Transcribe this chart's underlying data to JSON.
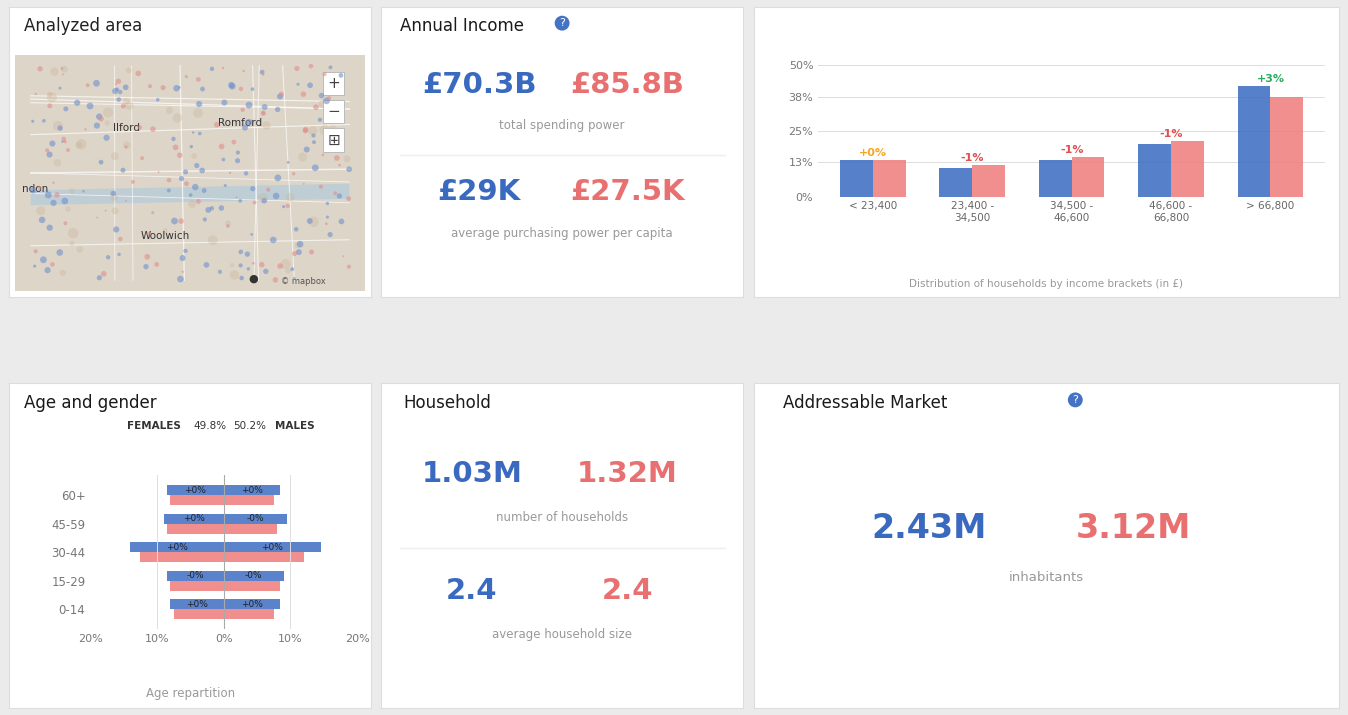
{
  "bg_color": "#ebebeb",
  "panel_color": "#ffffff",
  "map_title": "Analyzed area",
  "income_title": "Annual Income",
  "income_val1": "£70.3B",
  "income_val2": "£85.8B",
  "income_label1": "total spending power",
  "income_val3": "£29K",
  "income_val4": "£27.5K",
  "income_label2": "average purchasing power per capita",
  "blue_color": "#4472c4",
  "pink_color": "#f08080",
  "bar_categories": [
    "< 23,400",
    "23,400 -\n34,500",
    "34,500 -\n46,600",
    "46,600 -\n66,800",
    "> 66,800"
  ],
  "bar_blue": [
    14,
    11,
    14,
    20,
    42
  ],
  "bar_pink": [
    14,
    12,
    15,
    21,
    38
  ],
  "bar_annotations": [
    "+0%",
    "-1%",
    "-1%",
    "-1%",
    "+3%"
  ],
  "bar_ann_colors": [
    "#f5a623",
    "#e05050",
    "#e05050",
    "#e05050",
    "#27ae60"
  ],
  "bar_yticks": [
    0,
    13,
    25,
    38,
    50
  ],
  "bar_ytick_labels": [
    "0%",
    "13%",
    "25%",
    "38%",
    "50%"
  ],
  "bar_xlabel": "Distribution of households by income brackets (in £)",
  "age_title": "Age and gender",
  "age_female_pct": "49.8%",
  "age_male_pct": "50.2%",
  "age_groups": [
    "60+",
    "45-59",
    "30-44",
    "15-29",
    "0-14"
  ],
  "age_female_blue": [
    8.5,
    9.0,
    14.0,
    8.5,
    8.0
  ],
  "age_female_pink": [
    8.0,
    8.5,
    12.5,
    8.0,
    7.5
  ],
  "age_male_blue": [
    8.5,
    9.5,
    14.5,
    9.0,
    8.5
  ],
  "age_male_pink": [
    7.5,
    8.0,
    12.0,
    8.5,
    7.5
  ],
  "age_female_labels": [
    "+0%",
    "+0%",
    "+0%",
    "-0%",
    "+0%"
  ],
  "age_male_labels": [
    "+0%",
    "-0%",
    "+0%",
    "-0%",
    "+0%"
  ],
  "age_xlabel": "Age repartition",
  "age_xticks": [
    -20,
    -10,
    0,
    10,
    20
  ],
  "age_xtick_labels": [
    "20%",
    "10%",
    "0%",
    "10%",
    "20%"
  ],
  "household_title": "Household",
  "household_val1": "1.03M",
  "household_val2": "1.32M",
  "household_label1": "number of households",
  "household_val3": "2.4",
  "household_val4": "2.4",
  "household_label2": "average household size",
  "market_title": "Addressable Market",
  "market_val1": "2.43M",
  "market_val2": "3.12M",
  "market_label1": "inhabitants"
}
